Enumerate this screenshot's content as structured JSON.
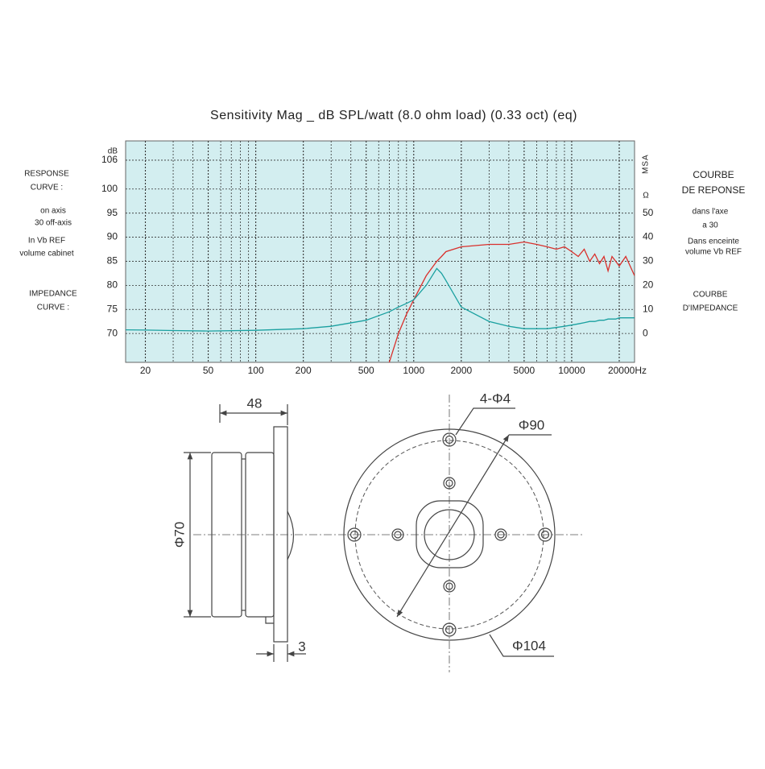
{
  "chart_data": {
    "type": "line",
    "title": "Sensitivity Mag _ dB SPL/watt (8.0 ohm load) (0.33 oct) (eq)",
    "ylabel": "dB",
    "y2label": "MSA",
    "y2unit": "Ω",
    "log_x": true,
    "grid": true,
    "background": "#d3eef0",
    "x": [
      15,
      20,
      30,
      50,
      100,
      200,
      300,
      500,
      700,
      800,
      900,
      1000,
      1200,
      1400,
      1500,
      1600,
      2000,
      3000,
      4000,
      5000,
      6000,
      7000,
      8000,
      9000,
      10000,
      11000,
      12000,
      13000,
      14000,
      15000,
      16000,
      17000,
      18000,
      19000,
      20000,
      22000,
      25000
    ],
    "series": [
      {
        "name": "Response curve",
        "color": "#d9302c",
        "axis": "y",
        "values": [
          null,
          null,
          null,
          null,
          null,
          null,
          null,
          null,
          64,
          70,
          74,
          77,
          82,
          85,
          86,
          87,
          88,
          88.5,
          88.5,
          89,
          88.5,
          88,
          87.5,
          88,
          87,
          86,
          87.5,
          85,
          86.5,
          84.5,
          86,
          83,
          86,
          85,
          84,
          86,
          82
        ]
      },
      {
        "name": "Impedance curve",
        "color": "#1aa0a0",
        "axis": "y2",
        "values": [
          1.5,
          1.4,
          1.2,
          1,
          1.3,
          2,
          3,
          5.5,
          9,
          11,
          12.5,
          14,
          20,
          27,
          25,
          22,
          11,
          5,
          3,
          2,
          2,
          2,
          2.5,
          3,
          3.5,
          4,
          4.5,
          5,
          5,
          5.5,
          5.5,
          6,
          6,
          6,
          6.5,
          6.5,
          6.5
        ]
      }
    ],
    "xlim": [
      15,
      25000
    ],
    "xticks": [
      20,
      50,
      100,
      200,
      500,
      1000,
      2000,
      5000,
      10000,
      {
        "value": 20000,
        "label": "20000Hz"
      }
    ],
    "xgrid_minor": [
      30,
      40,
      60,
      70,
      80,
      90,
      300,
      400,
      600,
      700,
      800,
      900,
      3000,
      4000,
      6000,
      7000,
      8000,
      9000
    ],
    "ylim": [
      64,
      110
    ],
    "yticks": [
      70,
      75,
      80,
      85,
      90,
      95,
      100,
      106
    ],
    "y2lim": [
      -12,
      80
    ],
    "y2ticks": [
      0,
      10,
      20,
      30,
      40,
      50
    ],
    "left_notes": [
      [
        "RESPONSE",
        "CURVE :"
      ],
      [
        "on axis",
        "30  off-axis"
      ],
      [
        "In Vb REF",
        "volume cabinet"
      ],
      [
        "IMPEDANCE",
        "CURVE :"
      ]
    ],
    "right_notes": [
      [
        "COURBE",
        "DE REPONSE"
      ],
      [
        "dans l'axe",
        "a 30"
      ],
      [
        "Dans enceinte",
        "volume  Vb REF"
      ],
      [
        "COURBE",
        "D'IMPEDANCE"
      ]
    ]
  },
  "drawing": {
    "depth": "48",
    "body_diameter": "Φ70",
    "flange_thickness": "3",
    "holes": "4-Φ4",
    "bolt_circle": "Φ90",
    "outer_diameter": "Φ104"
  }
}
